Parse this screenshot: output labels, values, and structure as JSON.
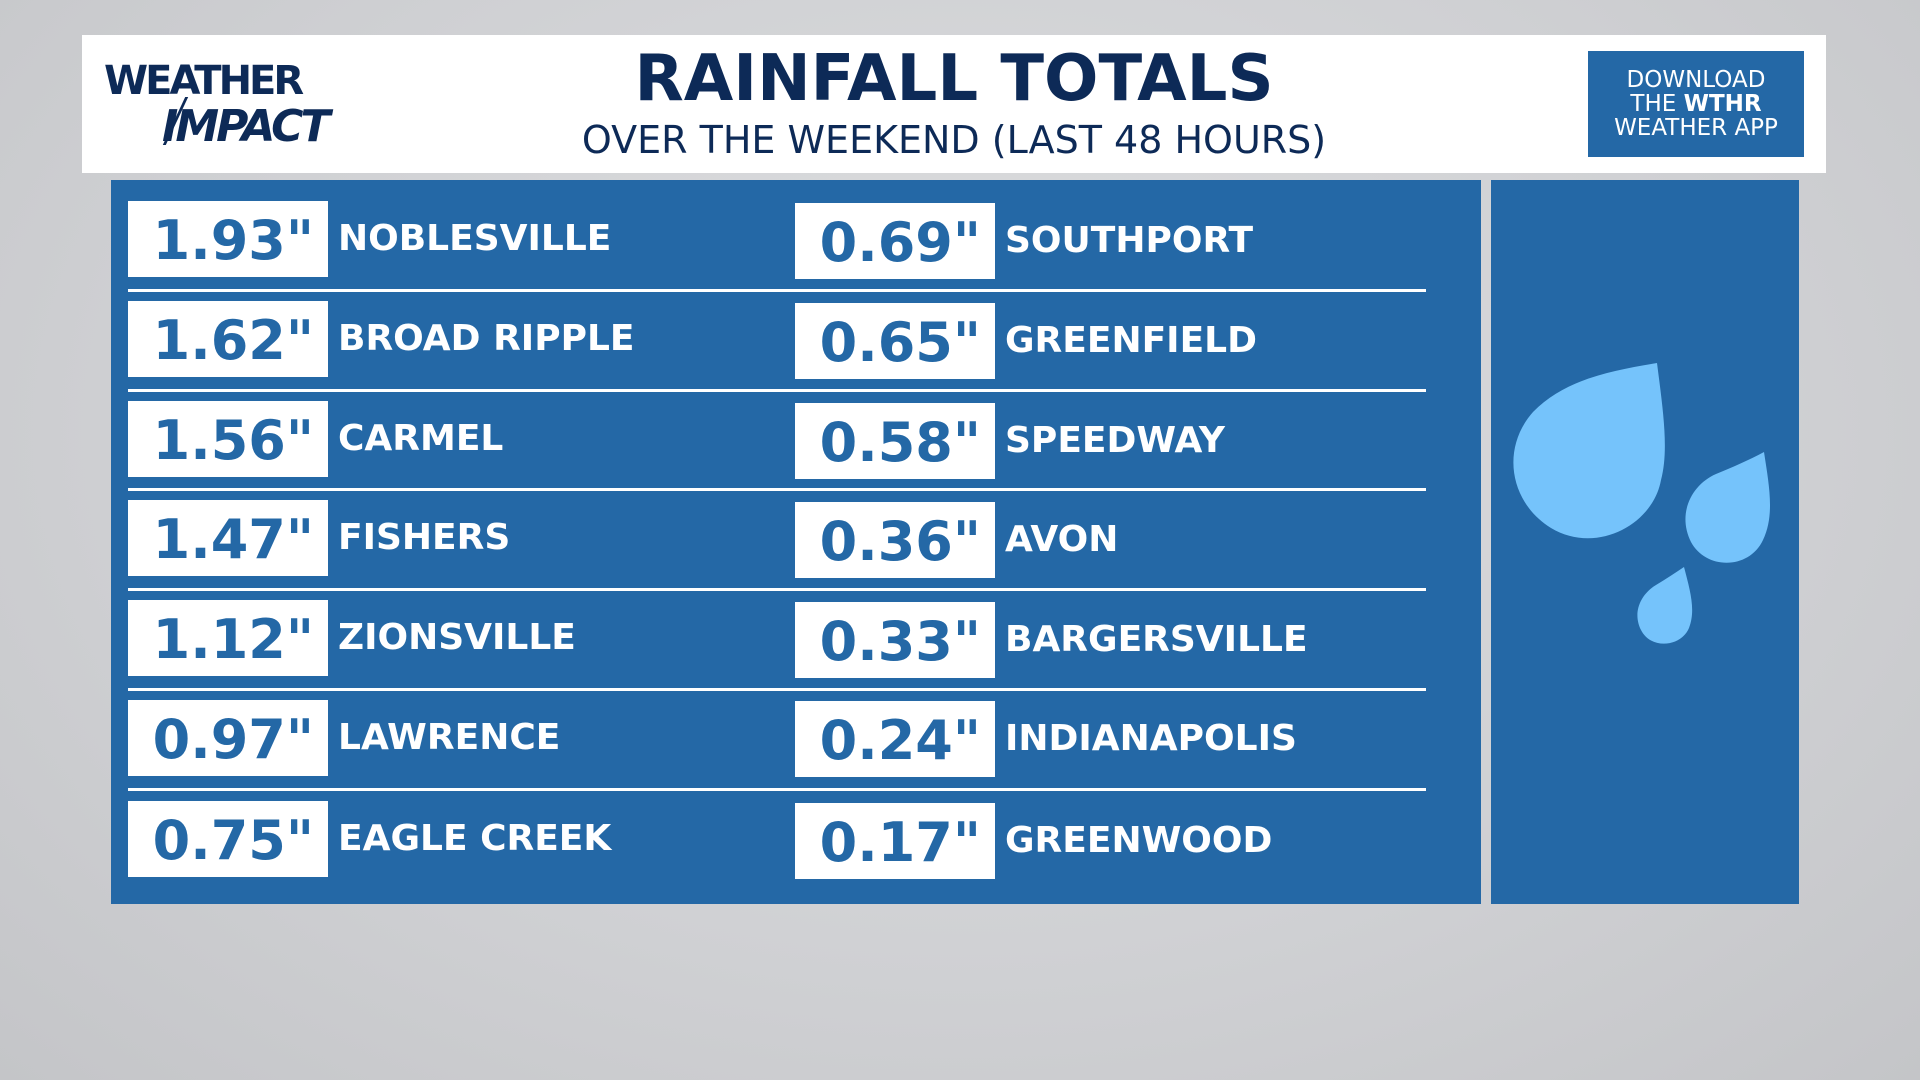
{
  "header": {
    "logo_line1": "WEATHER",
    "logo_line2": "IMPACT",
    "title": "RAINFALL TOTALS",
    "subtitle": "OVER THE WEEKEND (LAST 48 HOURS)",
    "app_line1": "DOWNLOAD",
    "app_line2_prefix": "THE ",
    "app_line2_bold": "WTHR",
    "app_line3": "WEATHER APP"
  },
  "left_column": [
    {
      "value": "1.93\"",
      "location": "NOBLESVILLE"
    },
    {
      "value": "1.62\"",
      "location": "BROAD RIPPLE"
    },
    {
      "value": "1.56\"",
      "location": "CARMEL"
    },
    {
      "value": "1.47\"",
      "location": "FISHERS"
    },
    {
      "value": "1.12\"",
      "location": "ZIONSVILLE"
    },
    {
      "value": "0.97\"",
      "location": "LAWRENCE"
    },
    {
      "value": "0.75\"",
      "location": "EAGLE CREEK"
    }
  ],
  "right_column": [
    {
      "value": "0.69\"",
      "location": "SOUTHPORT"
    },
    {
      "value": "0.65\"",
      "location": "GREENFIELD"
    },
    {
      "value": "0.58\"",
      "location": "SPEEDWAY"
    },
    {
      "value": "0.36\"",
      "location": "AVON"
    },
    {
      "value": "0.33\"",
      "location": "BARGERSVILLE"
    },
    {
      "value": "0.24\"",
      "location": "INDIANAPOLIS"
    },
    {
      "value": "0.17\"",
      "location": "GREENWOOD"
    }
  ],
  "icons": {
    "rain_drops": "raindrops-icon"
  },
  "colors": {
    "navy": "#0d2a57",
    "panel_blue": "#2468a6",
    "drop_blue": "#75c3fb"
  }
}
